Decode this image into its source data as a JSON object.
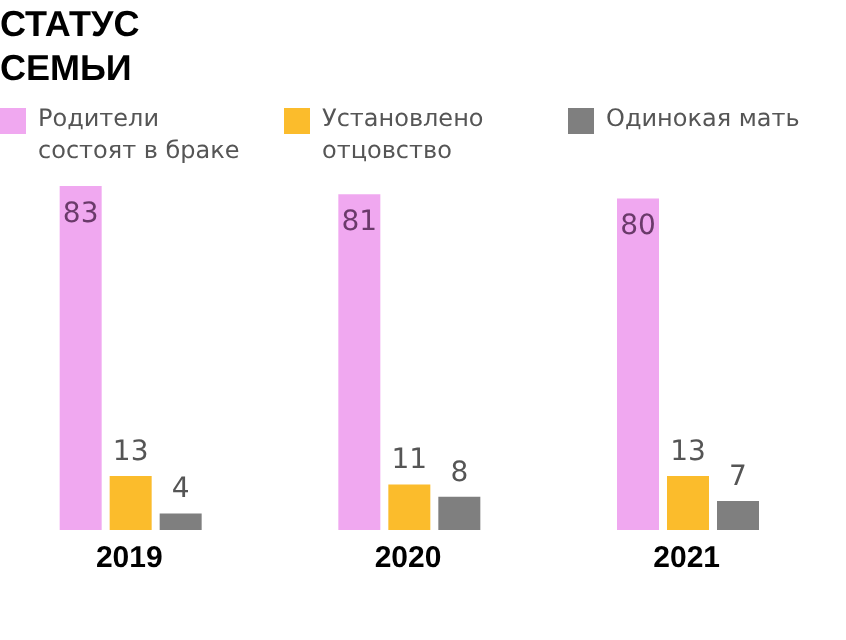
{
  "chart_data": {
    "type": "bar",
    "title": "СТАТУС СЕМЬИ",
    "categories": [
      "2019",
      "2020",
      "2021"
    ],
    "series": [
      {
        "name": "Родители состоят в браке",
        "color": "#f0a8f0",
        "values": [
          83,
          81,
          80
        ]
      },
      {
        "name": "Установлено отцовство",
        "color": "#fbbc2c",
        "values": [
          13,
          11,
          13
        ]
      },
      {
        "name": "Одинокая мать",
        "color": "#7f7f7f",
        "values": [
          4,
          8,
          7
        ]
      }
    ],
    "data_labels": true,
    "legend": "top",
    "grid": false
  }
}
